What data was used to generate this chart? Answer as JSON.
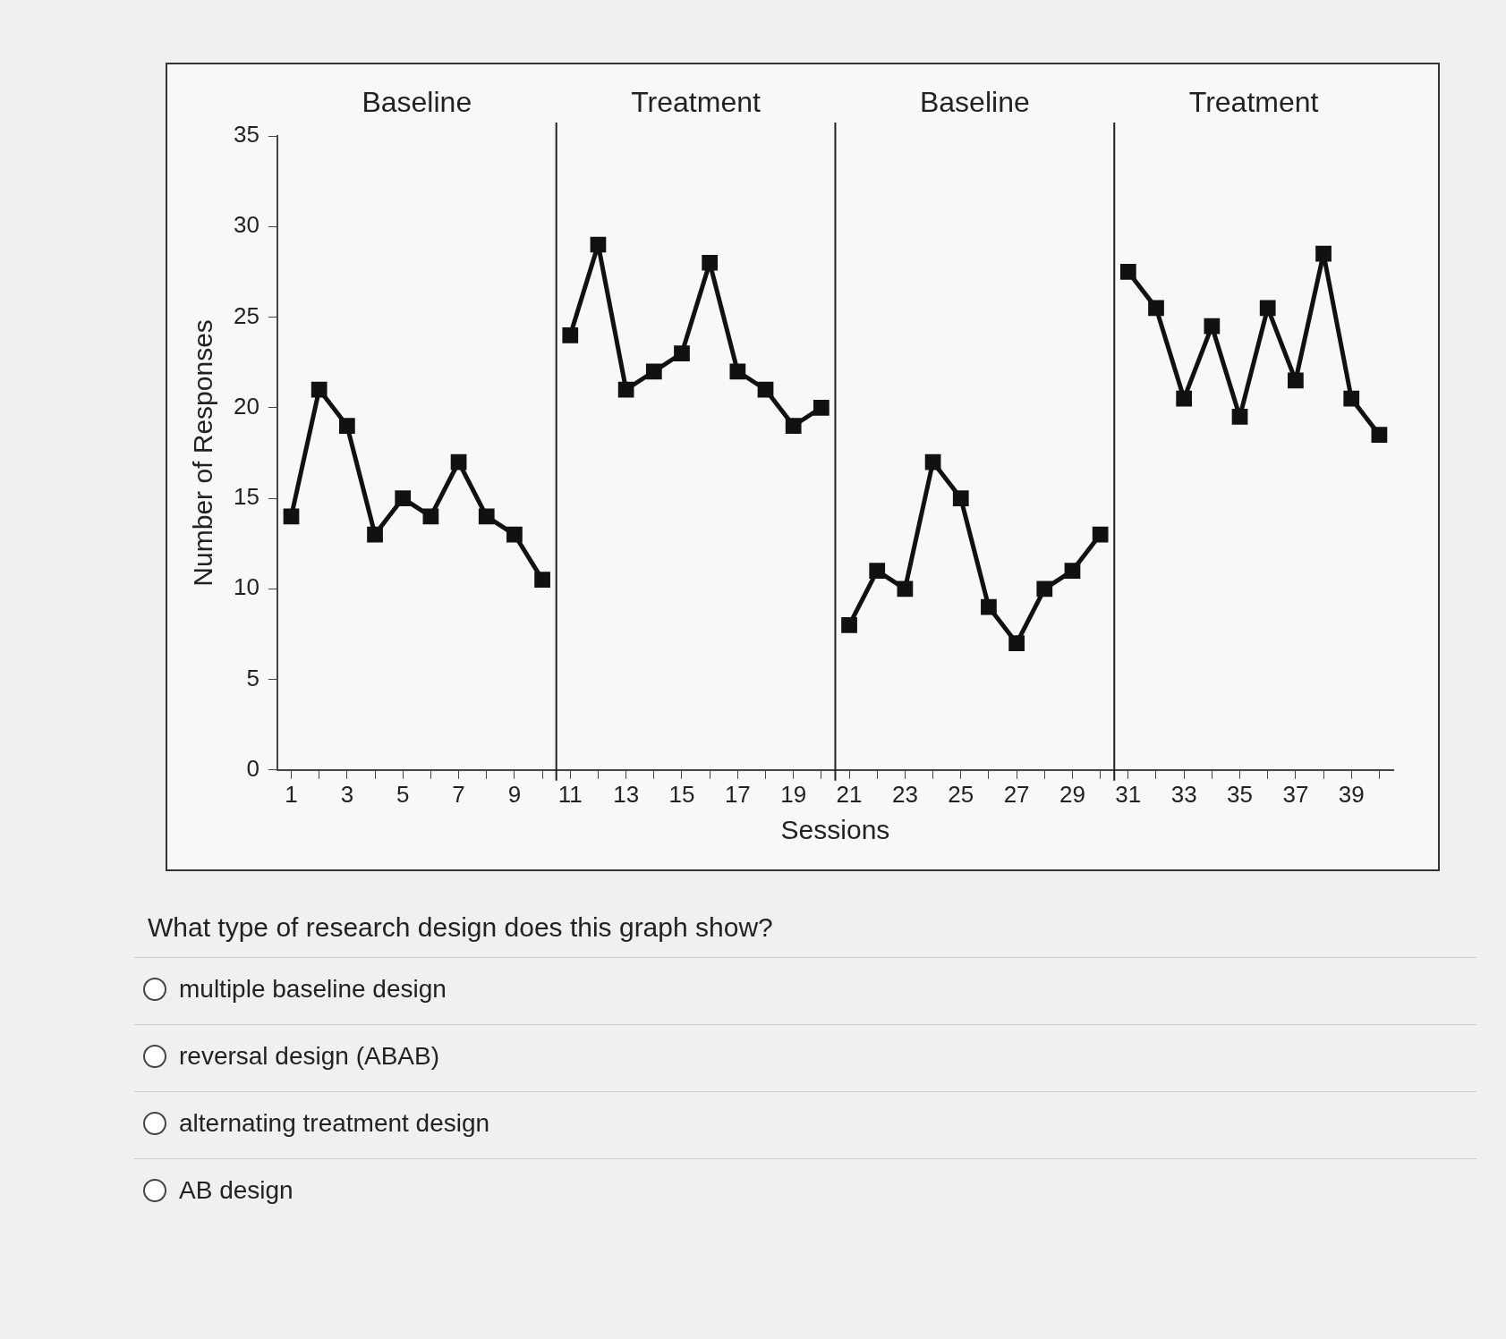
{
  "chart_data": {
    "type": "line",
    "xlabel": "Sessions",
    "ylabel": "Number of Responses",
    "xlim": [
      0.5,
      40.5
    ],
    "ylim": [
      0,
      35
    ],
    "yticks": [
      0,
      5,
      10,
      15,
      20,
      25,
      30,
      35
    ],
    "xticks": [
      1,
      {
        "value": 2,
        "label": null
      },
      3,
      {
        "value": 4,
        "label": null
      },
      5,
      {
        "value": 6,
        "label": null
      },
      7,
      {
        "value": 8,
        "label": null
      },
      9,
      {
        "value": 10,
        "label": null
      },
      11,
      {
        "value": 12,
        "label": null
      },
      13,
      {
        "value": 14,
        "label": null
      },
      15,
      {
        "value": 16,
        "label": null
      },
      17,
      {
        "value": 18,
        "label": null
      },
      19,
      {
        "value": 20,
        "label": null
      },
      21,
      {
        "value": 22,
        "label": null
      },
      23,
      {
        "value": 24,
        "label": null
      },
      25,
      {
        "value": 26,
        "label": null
      },
      27,
      {
        "value": 28,
        "label": null
      },
      29,
      {
        "value": 30,
        "label": null
      },
      31,
      {
        "value": 32,
        "label": null
      },
      33,
      {
        "value": 34,
        "label": null
      },
      35,
      {
        "value": 36,
        "label": null
      },
      37,
      {
        "value": 38,
        "label": null
      },
      39,
      {
        "value": 40,
        "label": null
      }
    ],
    "series": [
      {
        "color": "#111111",
        "x": [
          1,
          2,
          3,
          4,
          5,
          6,
          7,
          8,
          9,
          10
        ],
        "values": [
          14,
          21,
          19,
          13,
          15,
          14,
          17,
          14,
          13,
          10.5
        ]
      },
      {
        "color": "#111111",
        "x": [
          11,
          12,
          13,
          14,
          15,
          16,
          17,
          18,
          19,
          20
        ],
        "values": [
          24,
          29,
          21,
          22,
          23,
          28,
          22,
          21,
          19,
          20
        ]
      },
      {
        "color": "#111111",
        "x": [
          21,
          22,
          23,
          24,
          25,
          26,
          27,
          28,
          29,
          30
        ],
        "values": [
          8,
          11,
          10,
          17,
          15,
          9,
          7,
          10,
          11,
          13
        ]
      },
      {
        "color": "#111111",
        "x": [
          31,
          32,
          33,
          34,
          35,
          36,
          37,
          38,
          39,
          40
        ],
        "values": [
          27.5,
          25.5,
          20.5,
          24.5,
          19.5,
          25.5,
          21.5,
          28.5,
          20.5,
          18.5
        ]
      }
    ],
    "ref_lines": [
      {
        "axis": "x",
        "value": 10.5
      },
      {
        "axis": "x",
        "value": 20.5
      },
      {
        "axis": "x",
        "value": 30.5
      }
    ],
    "marker": "square",
    "line_style": "solid",
    "grid": false,
    "legend": false,
    "annotations": [
      "Baseline",
      "Treatment",
      "Baseline",
      "Treatment",
      "What type of research design does this graph show?",
      "multiple baseline design",
      "reversal design (ABAB)",
      "alternating treatment design",
      "AB design"
    ]
  }
}
